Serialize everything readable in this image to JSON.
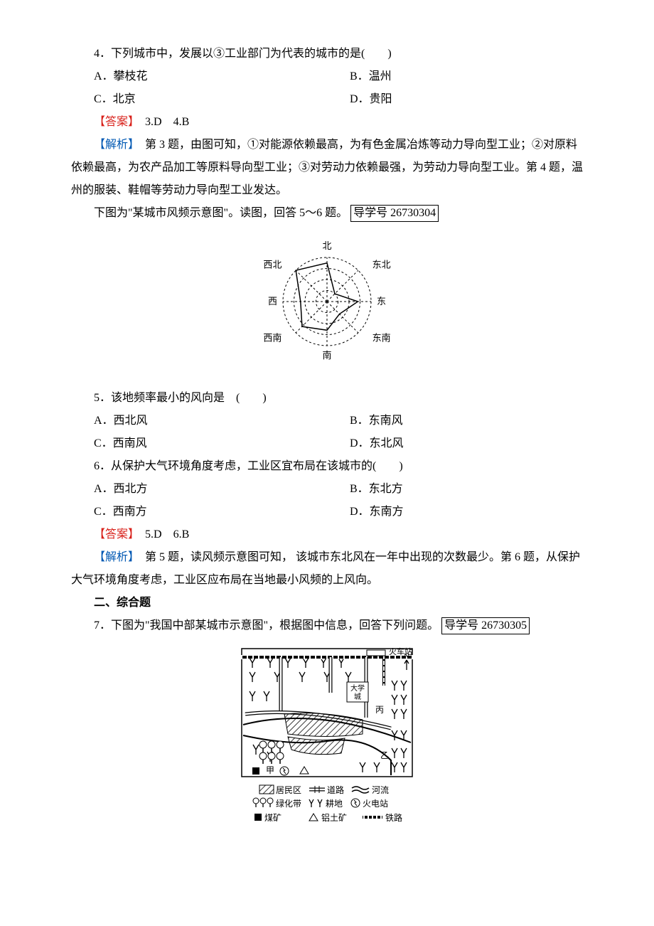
{
  "q4": {
    "text": "4．下列城市中，发展以③工业部门为代表的城市的是(　　)",
    "A": "A．攀枝花",
    "B": "B．温州",
    "C": "C．北京",
    "D": "D．贵阳"
  },
  "ans34": {
    "label": "【答案】",
    "text": "　3.D　4.B"
  },
  "exp34": {
    "label": "【解析】",
    "text": "　第 3 题，由图可知，①对能源依赖最高，为有色金属冶炼等动力导向型工业；②对原料依赖最高，为农产品加工等原料导向型工业；③对劳动力依赖最强，为劳动力导向型工业。第 4 题，温州的服装、鞋帽等劳动力导向型工业发达。"
  },
  "intro56": {
    "text_a": "下图为\"某城市风频示意图\"。读图，回答 5～6 题。",
    "guide": "导学号 26730304"
  },
  "wind_diagram": {
    "labels": {
      "n": "北",
      "ne": "东北",
      "e": "东",
      "se": "东南",
      "s": "南",
      "sw": "西南",
      "w": "西",
      "nw": "西北"
    },
    "rings": 4,
    "values": {
      "n": 3.5,
      "ne": 1.0,
      "e": 2.8,
      "se": 1.6,
      "s": 2.6,
      "sw": 3.2,
      "w": 2.4,
      "nw": 4.0
    },
    "ring_color": "#000",
    "arm_color": "#000",
    "poly_color": "#000"
  },
  "q5": {
    "text": "5．该地频率最小的风向是　(　　)",
    "A": "A．西北风",
    "B": "B．东南风",
    "C": "C．西南风",
    "D": "D．东北风"
  },
  "q6": {
    "text": "6．从保护大气环境角度考虑，工业区宜布局在该城市的(　　)",
    "A": "A．西北方",
    "B": "B．东北方",
    "C": "C．西南方",
    "D": "D．东南方"
  },
  "ans56": {
    "label": "【答案】",
    "text": "　5.D　6.B"
  },
  "exp56": {
    "label": "【解析】",
    "text": "　第 5 题，读风频示意图可知，  该城市东北风在一年中出现的次数最少。第 6 题，从保护大气环境角度考虑，工业区应布局在当地最小风频的上风向。"
  },
  "section2": "二、综合题",
  "q7": {
    "text_a": "7．下图为\"我国中部某城市示意图\"，根据图中信息，回答下列问题。",
    "guide": "导学号 26730305"
  },
  "city_map": {
    "labels": {
      "station": "火车站",
      "N": "N",
      "univ": "大学城",
      "jia": "甲",
      "yi": "乙",
      "bing": "丙"
    },
    "legend": {
      "residential": "居民区",
      "road": "道路",
      "river": "河流",
      "greenbelt": "绿化带",
      "farmland": "耕地",
      "powerplant": "火电站",
      "coal": "煤矿",
      "bauxite": "铝土矿",
      "railway": "铁路"
    }
  }
}
